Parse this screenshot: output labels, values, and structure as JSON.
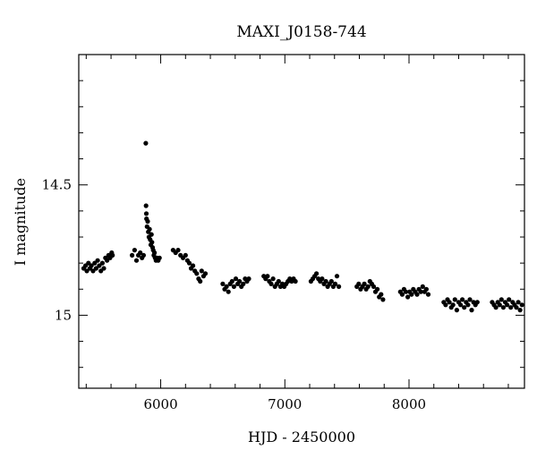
{
  "chart_data": {
    "type": "scatter",
    "title": "MAXI_J0158-744",
    "xlabel": "HJD - 2450000",
    "ylabel": "I magnitude",
    "xlim": [
      5340,
      8930
    ],
    "ylim": [
      15.28,
      14.0
    ],
    "y_inverted": true,
    "grid": false,
    "legend": "none",
    "x_ticks": [
      6000,
      7000,
      8000
    ],
    "x_tick_labels": [
      "6000",
      "7000",
      "8000"
    ],
    "y_ticks": [
      14.5,
      15
    ],
    "y_tick_labels": [
      "14.5",
      "15"
    ],
    "marker_color": "#000000",
    "series": [
      {
        "points": [
          [
            5380,
            14.82
          ],
          [
            5395,
            14.81
          ],
          [
            5405,
            14.83
          ],
          [
            5418,
            14.8
          ],
          [
            5430,
            14.82
          ],
          [
            5442,
            14.81
          ],
          [
            5455,
            14.83
          ],
          [
            5468,
            14.8
          ],
          [
            5480,
            14.82
          ],
          [
            5492,
            14.79
          ],
          [
            5505,
            14.81
          ],
          [
            5518,
            14.83
          ],
          [
            5530,
            14.8
          ],
          [
            5542,
            14.82
          ],
          [
            5555,
            14.78
          ],
          [
            5568,
            14.79
          ],
          [
            5580,
            14.77
          ],
          [
            5592,
            14.78
          ],
          [
            5605,
            14.76
          ],
          [
            5612,
            14.77
          ],
          [
            5770,
            14.77
          ],
          [
            5790,
            14.75
          ],
          [
            5805,
            14.79
          ],
          [
            5820,
            14.77
          ],
          [
            5835,
            14.76
          ],
          [
            5850,
            14.78
          ],
          [
            5862,
            14.77
          ],
          [
            5880,
            14.34
          ],
          [
            5882,
            14.58
          ],
          [
            5884,
            14.61
          ],
          [
            5886,
            14.63
          ],
          [
            5890,
            14.66
          ],
          [
            5895,
            14.64
          ],
          [
            5900,
            14.68
          ],
          [
            5905,
            14.7
          ],
          [
            5910,
            14.67
          ],
          [
            5915,
            14.71
          ],
          [
            5920,
            14.73
          ],
          [
            5925,
            14.69
          ],
          [
            5930,
            14.72
          ],
          [
            5935,
            14.74
          ],
          [
            5940,
            14.75
          ],
          [
            5945,
            14.77
          ],
          [
            5950,
            14.76
          ],
          [
            5955,
            14.78
          ],
          [
            5962,
            14.79
          ],
          [
            5970,
            14.78
          ],
          [
            5980,
            14.79
          ],
          [
            5990,
            14.78
          ],
          [
            6100,
            14.75
          ],
          [
            6120,
            14.76
          ],
          [
            6140,
            14.75
          ],
          [
            6160,
            14.77
          ],
          [
            6180,
            14.78
          ],
          [
            6200,
            14.77
          ],
          [
            6215,
            14.79
          ],
          [
            6230,
            14.8
          ],
          [
            6245,
            14.82
          ],
          [
            6260,
            14.81
          ],
          [
            6275,
            14.83
          ],
          [
            6290,
            14.84
          ],
          [
            6305,
            14.86
          ],
          [
            6318,
            14.87
          ],
          [
            6330,
            14.83
          ],
          [
            6345,
            14.85
          ],
          [
            6360,
            14.84
          ],
          [
            6500,
            14.88
          ],
          [
            6515,
            14.9
          ],
          [
            6530,
            14.89
          ],
          [
            6545,
            14.91
          ],
          [
            6560,
            14.88
          ],
          [
            6575,
            14.87
          ],
          [
            6590,
            14.89
          ],
          [
            6605,
            14.86
          ],
          [
            6620,
            14.88
          ],
          [
            6635,
            14.87
          ],
          [
            6650,
            14.89
          ],
          [
            6665,
            14.88
          ],
          [
            6680,
            14.86
          ],
          [
            6695,
            14.87
          ],
          [
            6710,
            14.86
          ],
          [
            6830,
            14.85
          ],
          [
            6845,
            14.86
          ],
          [
            6860,
            14.85
          ],
          [
            6875,
            14.87
          ],
          [
            6890,
            14.88
          ],
          [
            6905,
            14.86
          ],
          [
            6920,
            14.89
          ],
          [
            6935,
            14.88
          ],
          [
            6950,
            14.87
          ],
          [
            6965,
            14.89
          ],
          [
            6980,
            14.88
          ],
          [
            6995,
            14.89
          ],
          [
            7010,
            14.88
          ],
          [
            7025,
            14.87
          ],
          [
            7040,
            14.86
          ],
          [
            7055,
            14.87
          ],
          [
            7070,
            14.86
          ],
          [
            7085,
            14.87
          ],
          [
            7210,
            14.87
          ],
          [
            7225,
            14.86
          ],
          [
            7240,
            14.85
          ],
          [
            7255,
            14.84
          ],
          [
            7270,
            14.86
          ],
          [
            7285,
            14.87
          ],
          [
            7300,
            14.86
          ],
          [
            7315,
            14.88
          ],
          [
            7330,
            14.87
          ],
          [
            7345,
            14.89
          ],
          [
            7360,
            14.88
          ],
          [
            7375,
            14.87
          ],
          [
            7390,
            14.89
          ],
          [
            7405,
            14.88
          ],
          [
            7420,
            14.85
          ],
          [
            7435,
            14.89
          ],
          [
            7580,
            14.89
          ],
          [
            7595,
            14.88
          ],
          [
            7610,
            14.9
          ],
          [
            7625,
            14.89
          ],
          [
            7640,
            14.88
          ],
          [
            7655,
            14.9
          ],
          [
            7670,
            14.89
          ],
          [
            7685,
            14.87
          ],
          [
            7700,
            14.88
          ],
          [
            7715,
            14.89
          ],
          [
            7730,
            14.91
          ],
          [
            7745,
            14.9
          ],
          [
            7760,
            14.93
          ],
          [
            7775,
            14.92
          ],
          [
            7790,
            14.94
          ],
          [
            7930,
            14.91
          ],
          [
            7945,
            14.92
          ],
          [
            7960,
            14.9
          ],
          [
            7975,
            14.91
          ],
          [
            7990,
            14.93
          ],
          [
            8005,
            14.91
          ],
          [
            8020,
            14.92
          ],
          [
            8035,
            14.9
          ],
          [
            8050,
            14.91
          ],
          [
            8065,
            14.92
          ],
          [
            8080,
            14.9
          ],
          [
            8095,
            14.91
          ],
          [
            8110,
            14.89
          ],
          [
            8125,
            14.91
          ],
          [
            8140,
            14.9
          ],
          [
            8155,
            14.92
          ],
          [
            8280,
            14.95
          ],
          [
            8295,
            14.96
          ],
          [
            8310,
            14.94
          ],
          [
            8325,
            14.95
          ],
          [
            8340,
            14.97
          ],
          [
            8355,
            14.96
          ],
          [
            8370,
            14.94
          ],
          [
            8385,
            14.98
          ],
          [
            8400,
            14.95
          ],
          [
            8415,
            14.96
          ],
          [
            8430,
            14.94
          ],
          [
            8445,
            14.97
          ],
          [
            8460,
            14.95
          ],
          [
            8475,
            14.96
          ],
          [
            8490,
            14.94
          ],
          [
            8505,
            14.98
          ],
          [
            8520,
            14.95
          ],
          [
            8535,
            14.96
          ],
          [
            8550,
            14.95
          ],
          [
            8670,
            14.95
          ],
          [
            8685,
            14.96
          ],
          [
            8700,
            14.97
          ],
          [
            8715,
            14.95
          ],
          [
            8730,
            14.96
          ],
          [
            8745,
            14.94
          ],
          [
            8760,
            14.97
          ],
          [
            8775,
            14.95
          ],
          [
            8790,
            14.96
          ],
          [
            8805,
            14.94
          ],
          [
            8820,
            14.97
          ],
          [
            8835,
            14.95
          ],
          [
            8850,
            14.96
          ],
          [
            8865,
            14.97
          ],
          [
            8880,
            14.95
          ],
          [
            8895,
            14.98
          ],
          [
            8910,
            14.96
          ]
        ]
      }
    ]
  }
}
